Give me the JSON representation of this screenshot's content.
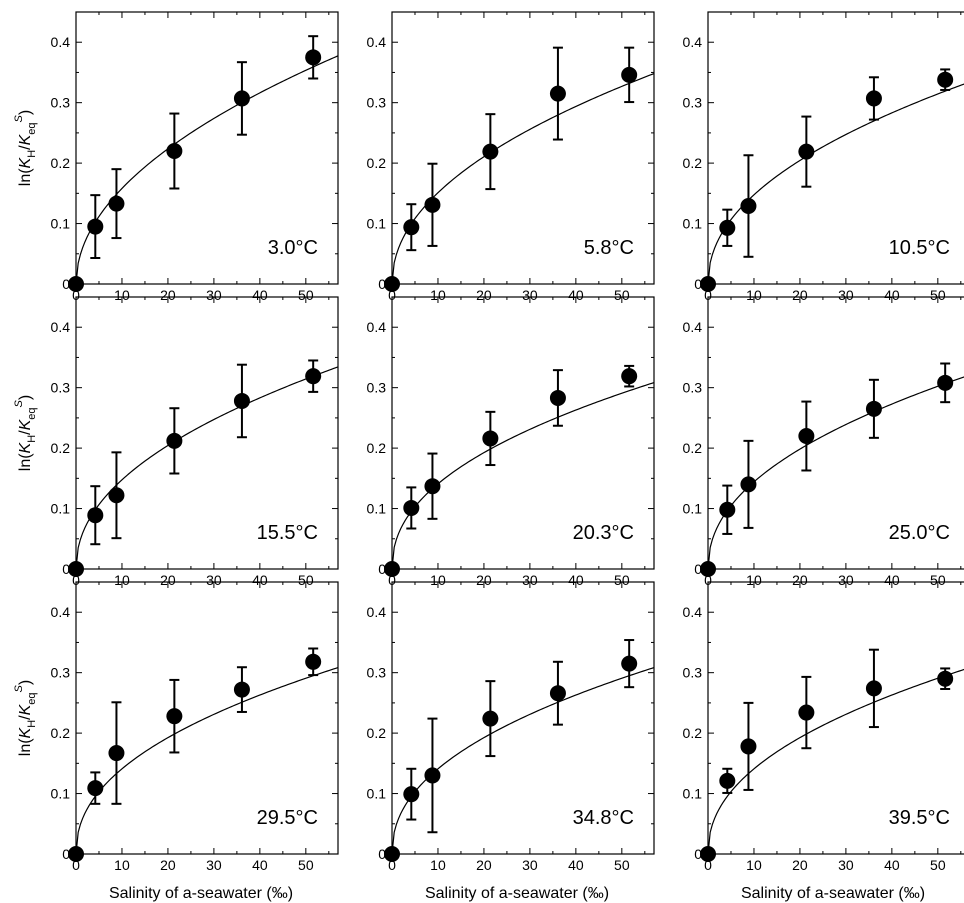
{
  "chart_data": {
    "type": "scatter",
    "layout": "3x3 grid",
    "xlabel": "Salinity of a-seawater (‰)",
    "ylabel": {
      "prefix": "ln(",
      "k": "K",
      "h_sub": "H",
      "slash": "/",
      "k2": "K",
      "eq_sub": "eq",
      "s_sup": "S",
      "suffix": ")"
    },
    "xlim": [
      0,
      57
    ],
    "ylim": [
      0,
      0.45
    ],
    "x_ticks": [
      0,
      10,
      20,
      30,
      40,
      50
    ],
    "x_tick_labels": [
      "0",
      "10",
      "20",
      "30",
      "40",
      "50"
    ],
    "y_ticks": [
      0,
      0.1,
      0.2,
      0.3,
      0.4
    ],
    "y_tick_labels": [
      "0",
      "0.1",
      "0.2",
      "0.3",
      "0.4"
    ],
    "x": [
      0,
      4.2,
      8.8,
      21.4,
      36.1,
      51.6
    ],
    "fit": "power-law curve through origin",
    "panels": [
      {
        "label": "3.0°C",
        "y": [
          0,
          0.095,
          0.133,
          0.22,
          0.307,
          0.375
        ],
        "err": [
          0,
          0.052,
          0.057,
          0.062,
          0.06,
          0.035
        ],
        "fit": {
          "a": 0.05,
          "b": 0.5
        }
      },
      {
        "label": "5.8°C",
        "y": [
          0,
          0.094,
          0.131,
          0.219,
          0.315,
          0.346
        ],
        "err": [
          0,
          0.038,
          0.068,
          0.062,
          0.076,
          0.045
        ],
        "fit": {
          "a": 0.05,
          "b": 0.48
        }
      },
      {
        "label": "10.5°C",
        "y": [
          0,
          0.093,
          0.129,
          0.219,
          0.307,
          0.338
        ],
        "err": [
          0,
          0.03,
          0.084,
          0.058,
          0.035,
          0.017
        ],
        "fit": {
          "a": 0.05,
          "b": 0.47
        }
      },
      {
        "label": "15.5°C",
        "y": [
          0,
          0.089,
          0.122,
          0.212,
          0.278,
          0.319
        ],
        "err": [
          0,
          0.048,
          0.071,
          0.054,
          0.06,
          0.026
        ],
        "fit": {
          "a": 0.05,
          "b": 0.47
        }
      },
      {
        "label": "20.3°C",
        "y": [
          0,
          0.101,
          0.137,
          0.216,
          0.283,
          0.319
        ],
        "err": [
          0,
          0.034,
          0.054,
          0.044,
          0.046,
          0.017
        ],
        "fit": {
          "a": 0.05,
          "b": 0.45
        }
      },
      {
        "label": "25.0°C",
        "y": [
          0,
          0.098,
          0.14,
          0.22,
          0.265,
          0.308
        ],
        "err": [
          0,
          0.04,
          0.072,
          0.057,
          0.048,
          0.032
        ],
        "fit": {
          "a": 0.05,
          "b": 0.46
        }
      },
      {
        "label": "29.5°C",
        "y": [
          0,
          0.109,
          0.167,
          0.228,
          0.272,
          0.318
        ],
        "err": [
          0,
          0.026,
          0.084,
          0.06,
          0.037,
          0.022
        ],
        "fit": {
          "a": 0.05,
          "b": 0.45
        }
      },
      {
        "label": "34.8°C",
        "y": [
          0,
          0.099,
          0.13,
          0.224,
          0.266,
          0.315
        ],
        "err": [
          0,
          0.042,
          0.094,
          0.062,
          0.052,
          0.039
        ],
        "fit": {
          "a": 0.05,
          "b": 0.45
        }
      },
      {
        "label": "39.5°C",
        "y": [
          0,
          0.121,
          0.178,
          0.234,
          0.274,
          0.29
        ],
        "err": [
          0,
          0.02,
          0.072,
          0.059,
          0.064,
          0.017
        ],
        "fit": {
          "a": 0.05,
          "b": 0.45
        }
      }
    ]
  }
}
